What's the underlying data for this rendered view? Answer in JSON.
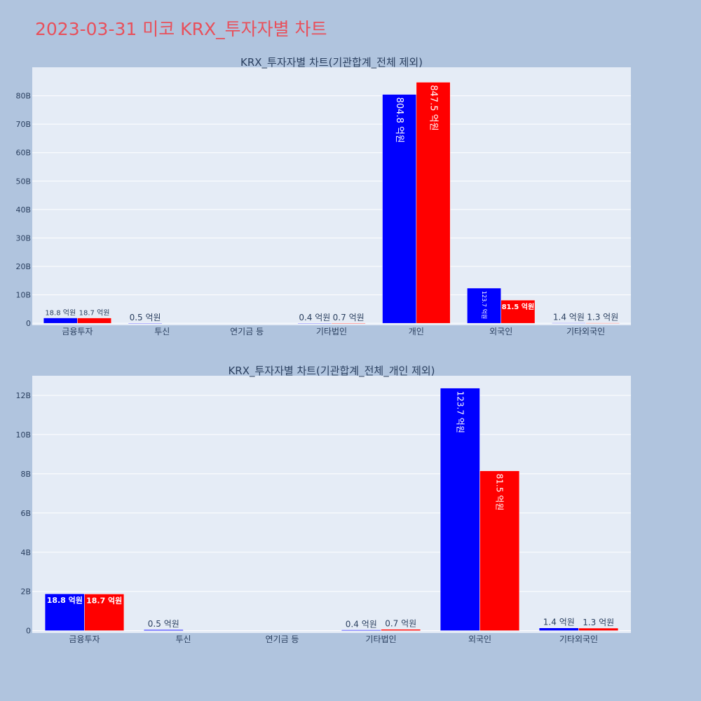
{
  "title": "2023-03-31 미코 KRX_투자자별 차트",
  "colors": {
    "title": "#e8505b",
    "series_a": "#0000ff",
    "series_b": "#ff0000",
    "background": "#b0c4de",
    "plot_bg": "#e5ecf6",
    "text": "#2a3f5f"
  },
  "chart_data": [
    {
      "type": "bar",
      "title": "KRX_투자자별 차트(기관합계_전체 제외)",
      "categories": [
        "금융투자",
        "투신",
        "연기금 등",
        "기타법인",
        "개인",
        "외국인",
        "기타외국인"
      ],
      "series": [
        {
          "values": [
            1.88,
            0.05,
            0,
            0.04,
            80.48,
            12.37,
            0.14
          ],
          "labels": [
            "18.8 억원",
            "0.5 억원",
            "",
            "0.4 억원",
            "804.8 억원",
            "123.7 억원",
            "1.4 억원"
          ]
        },
        {
          "values": [
            1.87,
            0,
            0,
            0.07,
            84.75,
            8.15,
            0.13
          ],
          "labels": [
            "18.7 억원",
            "",
            "",
            "0.7 억원",
            "847.5 억원",
            "81.5 억원",
            "1.3 억원"
          ]
        }
      ],
      "y_ticks": [
        0,
        10,
        20,
        30,
        40,
        50,
        60,
        70,
        80
      ],
      "y_tick_labels": [
        "0",
        "10B",
        "20B",
        "30B",
        "40B",
        "50B",
        "60B",
        "70B",
        "80B"
      ],
      "ylim": [
        -0.7,
        90
      ],
      "grid": true
    },
    {
      "type": "bar",
      "title": "KRX_투자자별 차트(기관합계_전체_개인 제외)",
      "categories": [
        "금융투자",
        "투신",
        "연기금 등",
        "기타법인",
        "외국인",
        "기타외국인"
      ],
      "series": [
        {
          "values": [
            1.88,
            0.05,
            0,
            0.04,
            12.37,
            0.14
          ],
          "labels": [
            "18.8 억원",
            "0.5 억원",
            "",
            "0.4 억원",
            "123.7 억원",
            "1.4 억원"
          ]
        },
        {
          "values": [
            1.87,
            0,
            0,
            0.07,
            8.15,
            0.13
          ],
          "labels": [
            "18.7 억원",
            "",
            "",
            "0.7 억원",
            "81.5 억원",
            "1.3 억원"
          ]
        }
      ],
      "y_ticks": [
        0,
        2,
        4,
        6,
        8,
        10,
        12
      ],
      "y_tick_labels": [
        "0",
        "2B",
        "4B",
        "6B",
        "8B",
        "10B",
        "12B"
      ],
      "ylim": [
        -0.12,
        13.0
      ],
      "grid": true
    }
  ]
}
